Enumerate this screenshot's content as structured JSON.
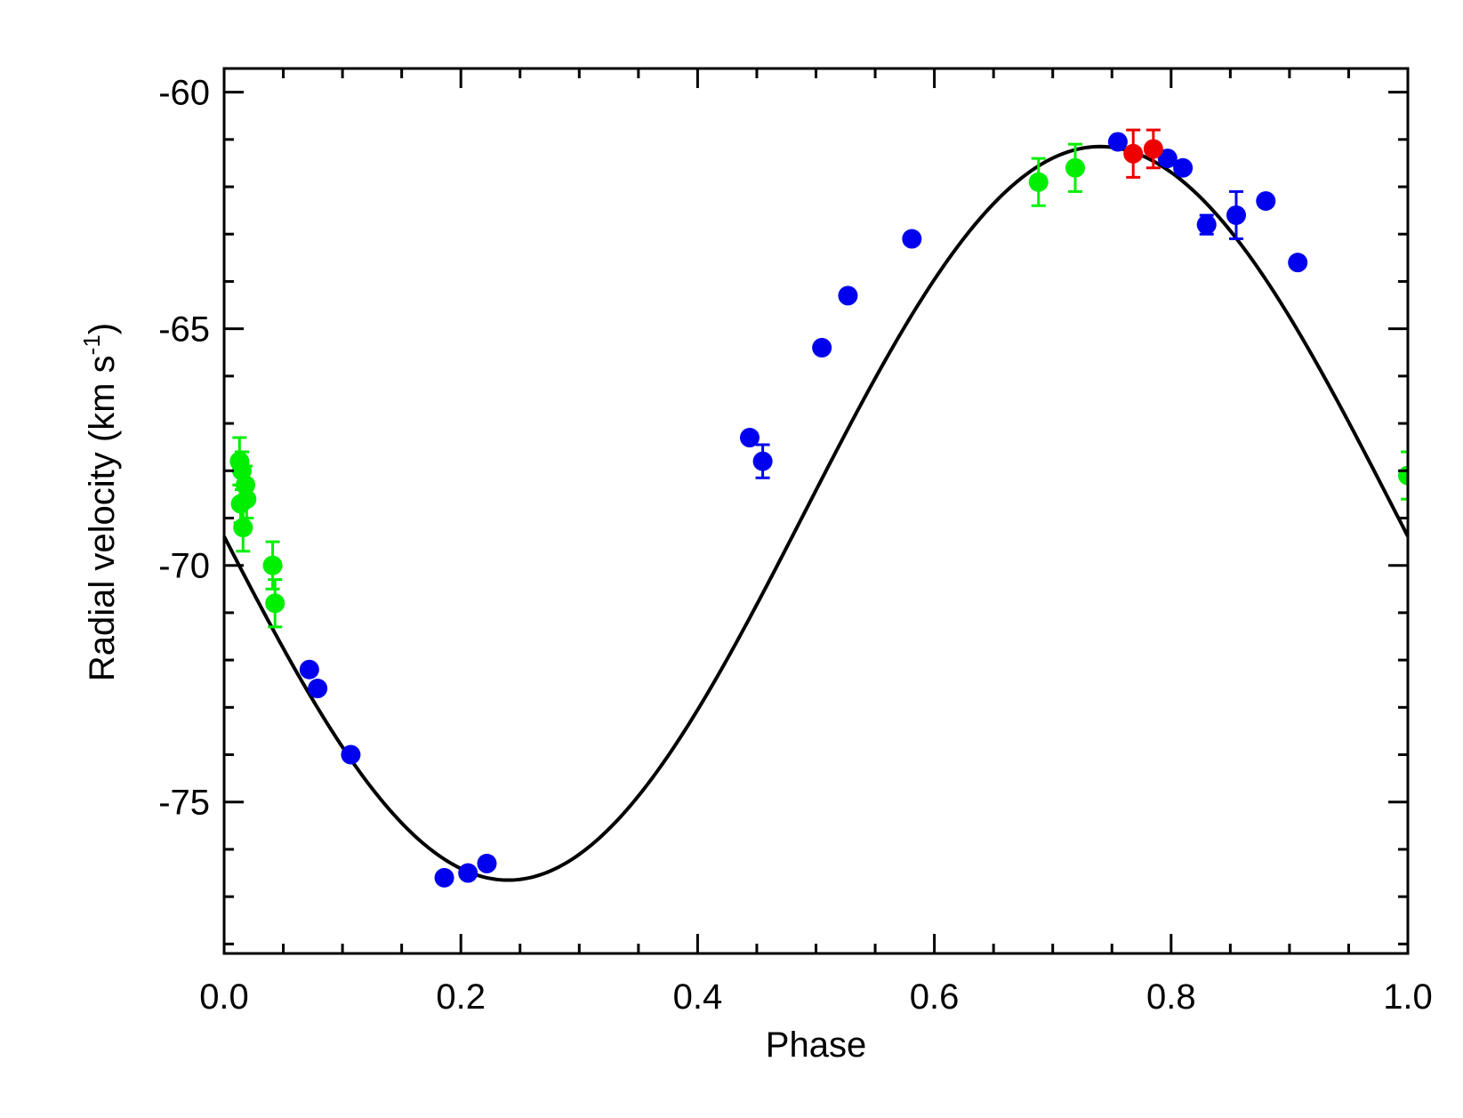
{
  "chart_data": {
    "type": "scatter",
    "title": "",
    "xlabel": "Phase",
    "ylabel": "Radial velocity (km s",
    "ylabel_superscript": "-1",
    "ylabel_suffix": ")",
    "xlim": [
      0.0,
      1.0
    ],
    "ylim": [
      -78.2,
      -59.5
    ],
    "x_ticks": [
      "0.0",
      "0.2",
      "0.4",
      "0.6",
      "0.8",
      "1.0"
    ],
    "y_ticks": [
      "-60",
      "-65",
      "-70",
      "-75"
    ],
    "grid": false,
    "legend": "none",
    "model_curve": {
      "color": "#000000",
      "description_only": "fitted orbit",
      "params": {
        "gamma": -68.9,
        "K": 7.75,
        "phase_of_max": 0.74
      }
    },
    "series": [
      {
        "color": "#0000ee",
        "points": [
          {
            "x": 0.072,
            "y": -72.2,
            "err": 0.1
          },
          {
            "x": 0.079,
            "y": -72.6,
            "err": 0.1
          },
          {
            "x": 0.107,
            "y": -74.0,
            "err": 0.1
          },
          {
            "x": 0.186,
            "y": -76.6,
            "err": 0.1
          },
          {
            "x": 0.206,
            "y": -76.5,
            "err": 0.1
          },
          {
            "x": 0.222,
            "y": -76.3,
            "err": 0.1
          },
          {
            "x": 0.444,
            "y": -67.3,
            "err": 0.1
          },
          {
            "x": 0.455,
            "y": -67.8,
            "err": 0.35
          },
          {
            "x": 0.505,
            "y": -65.4,
            "err": 0.1
          },
          {
            "x": 0.527,
            "y": -64.3,
            "err": 0.1
          },
          {
            "x": 0.581,
            "y": -63.1,
            "err": 0.1
          },
          {
            "x": 0.755,
            "y": -61.05,
            "err": 0.1
          },
          {
            "x": 0.797,
            "y": -61.4,
            "err": 0.1
          },
          {
            "x": 0.81,
            "y": -61.6,
            "err": 0.1
          },
          {
            "x": 0.83,
            "y": -62.8,
            "err": 0.2
          },
          {
            "x": 0.855,
            "y": -62.6,
            "err": 0.5
          },
          {
            "x": 0.88,
            "y": -62.3,
            "err": 0.1
          },
          {
            "x": 0.907,
            "y": -63.6,
            "err": 0.1
          }
        ]
      },
      {
        "color": "#00ee00",
        "points": [
          {
            "x": 0.013,
            "y": -67.8,
            "err": 0.5
          },
          {
            "x": 0.015,
            "y": -68.0,
            "err": 0.4
          },
          {
            "x": 0.018,
            "y": -68.3,
            "err": 0.4
          },
          {
            "x": 0.014,
            "y": -68.7,
            "err": 0.4
          },
          {
            "x": 0.019,
            "y": -68.6,
            "err": 0.4
          },
          {
            "x": 0.016,
            "y": -69.2,
            "err": 0.5
          },
          {
            "x": 0.041,
            "y": -70.0,
            "err": 0.5
          },
          {
            "x": 0.043,
            "y": -70.8,
            "err": 0.5
          },
          {
            "x": 0.688,
            "y": -61.9,
            "err": 0.5
          },
          {
            "x": 0.719,
            "y": -61.6,
            "err": 0.5
          },
          {
            "x": 1.0,
            "y": -68.1,
            "err": 0.5
          }
        ]
      },
      {
        "color": "#ee0000",
        "points": [
          {
            "x": 0.768,
            "y": -61.3,
            "err": 0.5
          },
          {
            "x": 0.785,
            "y": -61.2,
            "err": 0.4
          }
        ]
      }
    ]
  }
}
